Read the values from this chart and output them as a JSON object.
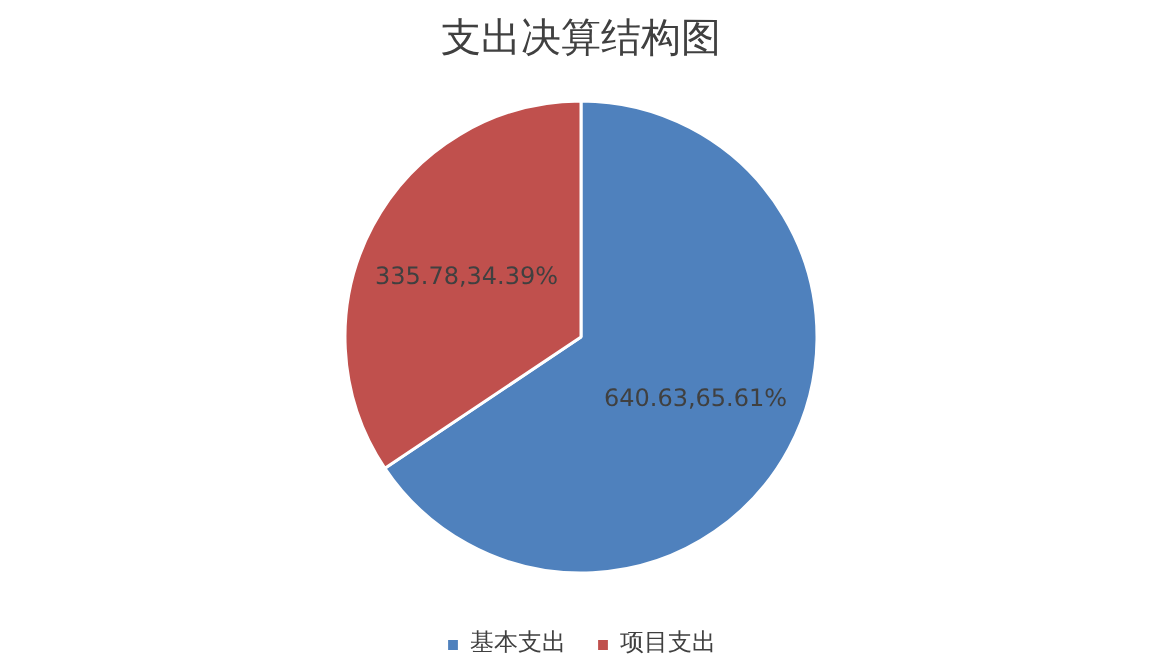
{
  "chart_data": {
    "type": "pie",
    "title": "支出决算结构图",
    "categories": [
      "基本支出",
      "项目支出"
    ],
    "values": [
      65.61,
      34.39
    ],
    "colors": [
      "#4f81bd",
      "#c0504d"
    ],
    "value_labels": [
      "640.63,65.61%",
      "335.78,34.39%"
    ],
    "legend": "bottom"
  }
}
